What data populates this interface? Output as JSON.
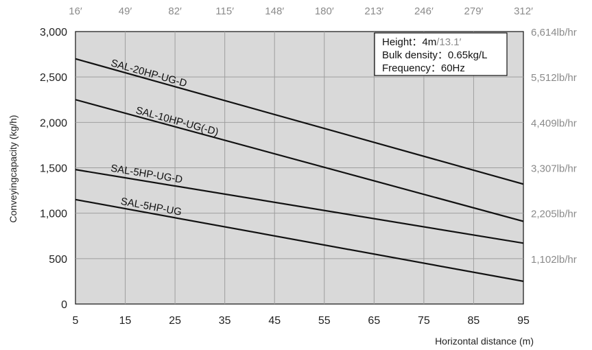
{
  "chart_data": {
    "type": "line",
    "title": "",
    "xlabel": "Horizontal distance (m)",
    "ylabel": "Conveyingcapacity (kg/h)",
    "x_ticks": [
      5,
      15,
      25,
      35,
      45,
      55,
      65,
      75,
      85,
      95
    ],
    "xlim": [
      5,
      95
    ],
    "y_ticks": [
      0,
      500,
      1000,
      1500,
      2000,
      2500,
      3000
    ],
    "y_tick_labels": [
      "0",
      "500",
      "1,000",
      "1,500",
      "2,000",
      "2,500",
      "3,000"
    ],
    "ylim": [
      0,
      3000
    ],
    "top_axis_labels": [
      "16′",
      "49′",
      "82′",
      "115′",
      "148′",
      "180′",
      "213′",
      "246′",
      "279′",
      "312′"
    ],
    "right_axis_labels": [
      "1,102lb/hr",
      "2,205lb/hr",
      "3,307lb/hr",
      "4,409lb/hr",
      "5,512lb/hr",
      "6,614lb/hr"
    ],
    "right_axis_values": [
      500,
      1000,
      1500,
      2000,
      2500,
      3000
    ],
    "grid": true,
    "series": [
      {
        "name": "SAL-20HP-UG-D",
        "x": [
          5,
          95
        ],
        "y": [
          2700,
          1320
        ]
      },
      {
        "name": "SAL-10HP-UG(-D)",
        "x": [
          5,
          95
        ],
        "y": [
          2250,
          910
        ]
      },
      {
        "name": "SAL-5HP-UG-D",
        "x": [
          5,
          95
        ],
        "y": [
          1480,
          670
        ]
      },
      {
        "name": "SAL-5HP-UG",
        "x": [
          5,
          95
        ],
        "y": [
          1150,
          250
        ]
      }
    ],
    "legend": {
      "position": "top-right",
      "height_label": "Height：4m",
      "height_alt": "/13.1′",
      "bulk_density": "Bulk density：0.65kg/L",
      "frequency": "Frequency：60Hz"
    },
    "colors": {
      "plot_background": "#d9d9d9",
      "grid": "#9e9e9e",
      "lines": "#111111",
      "secondary_text": "#8a8a8a"
    }
  }
}
